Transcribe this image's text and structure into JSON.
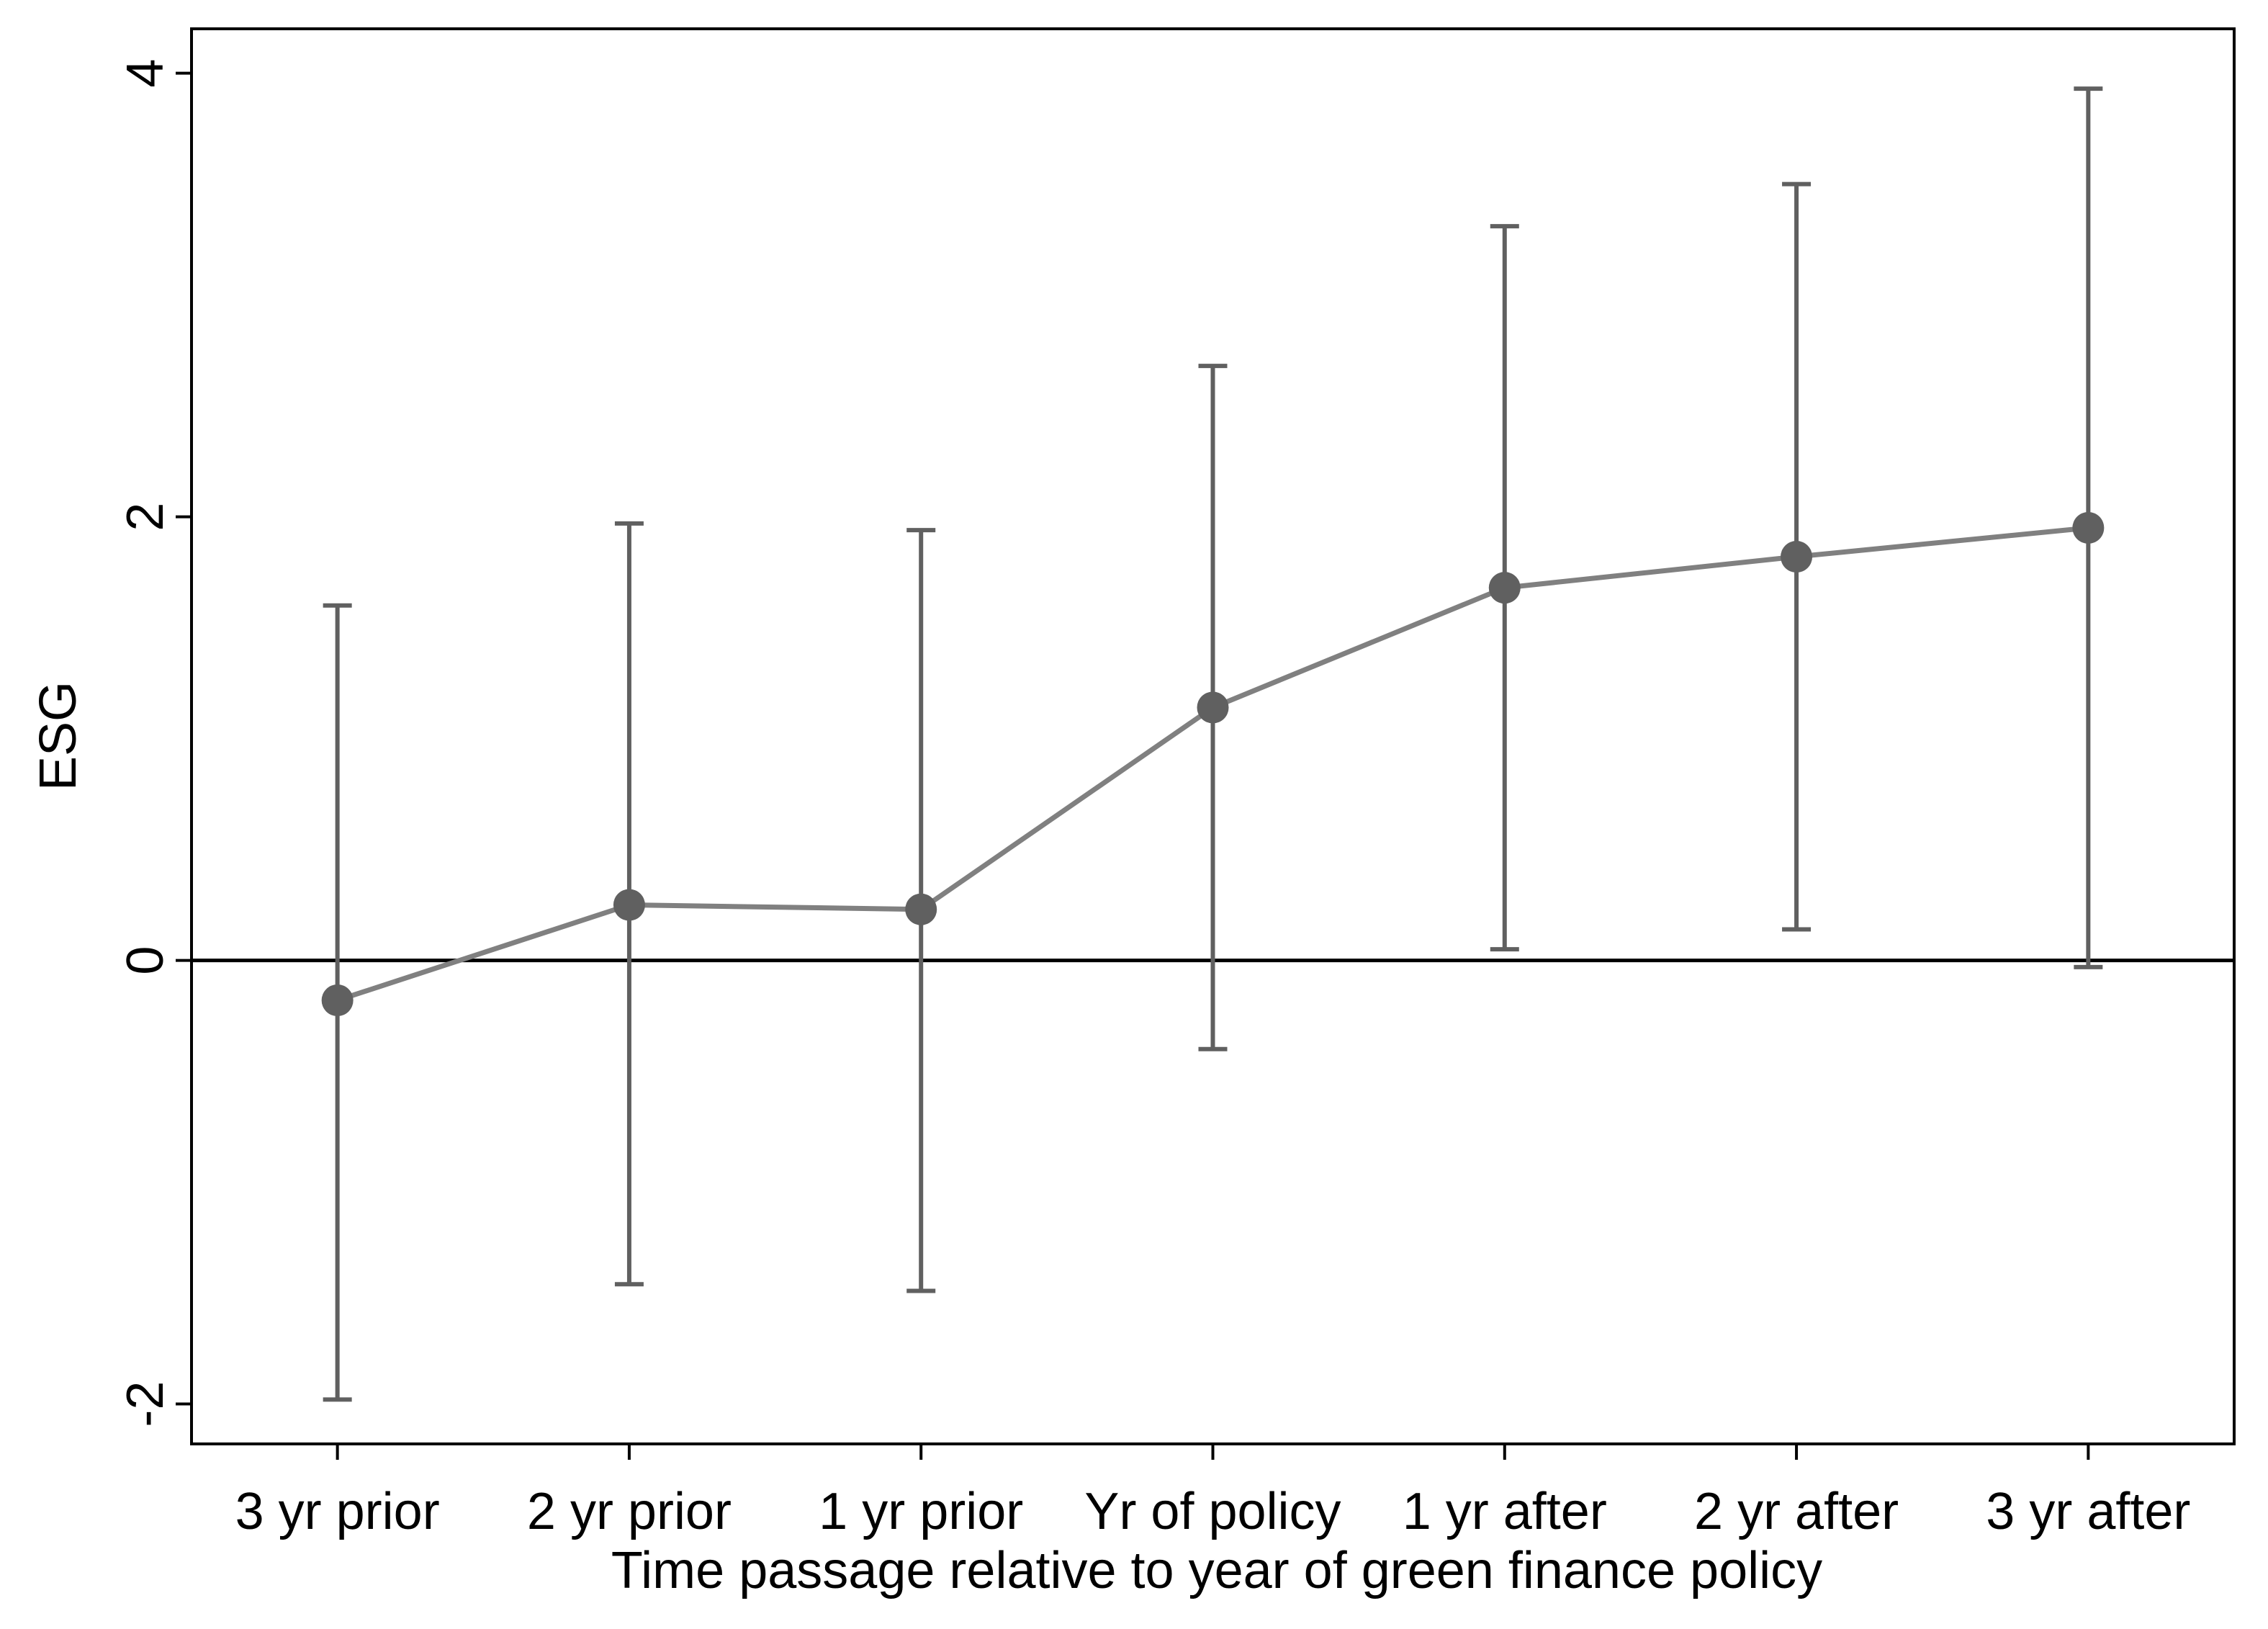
{
  "chart_data": {
    "type": "line",
    "x_label": "Time passage relative to year of green finance policy",
    "y_label": "ESG",
    "categories": [
      "3 yr prior",
      "2 yr prior",
      "1 yr prior",
      "Yr of policy",
      "1 yr after",
      "2 yr after",
      "3 yr after"
    ],
    "series": [
      {
        "values": [
          -0.18,
          0.25,
          0.23,
          1.14,
          1.68,
          1.82,
          1.95
        ],
        "lower": [
          -1.98,
          -1.46,
          -1.49,
          -0.4,
          0.05,
          0.14,
          -0.03
        ],
        "upper": [
          1.6,
          1.97,
          1.94,
          2.68,
          3.31,
          3.5,
          3.93
        ],
        "color": "#808080",
        "marker_color": "#606060",
        "errorbar_color": "#606060"
      }
    ],
    "ylim": [
      -2.18,
      4.2
    ],
    "yticks": [
      -2,
      0,
      2,
      4
    ],
    "reference_line": 0
  }
}
